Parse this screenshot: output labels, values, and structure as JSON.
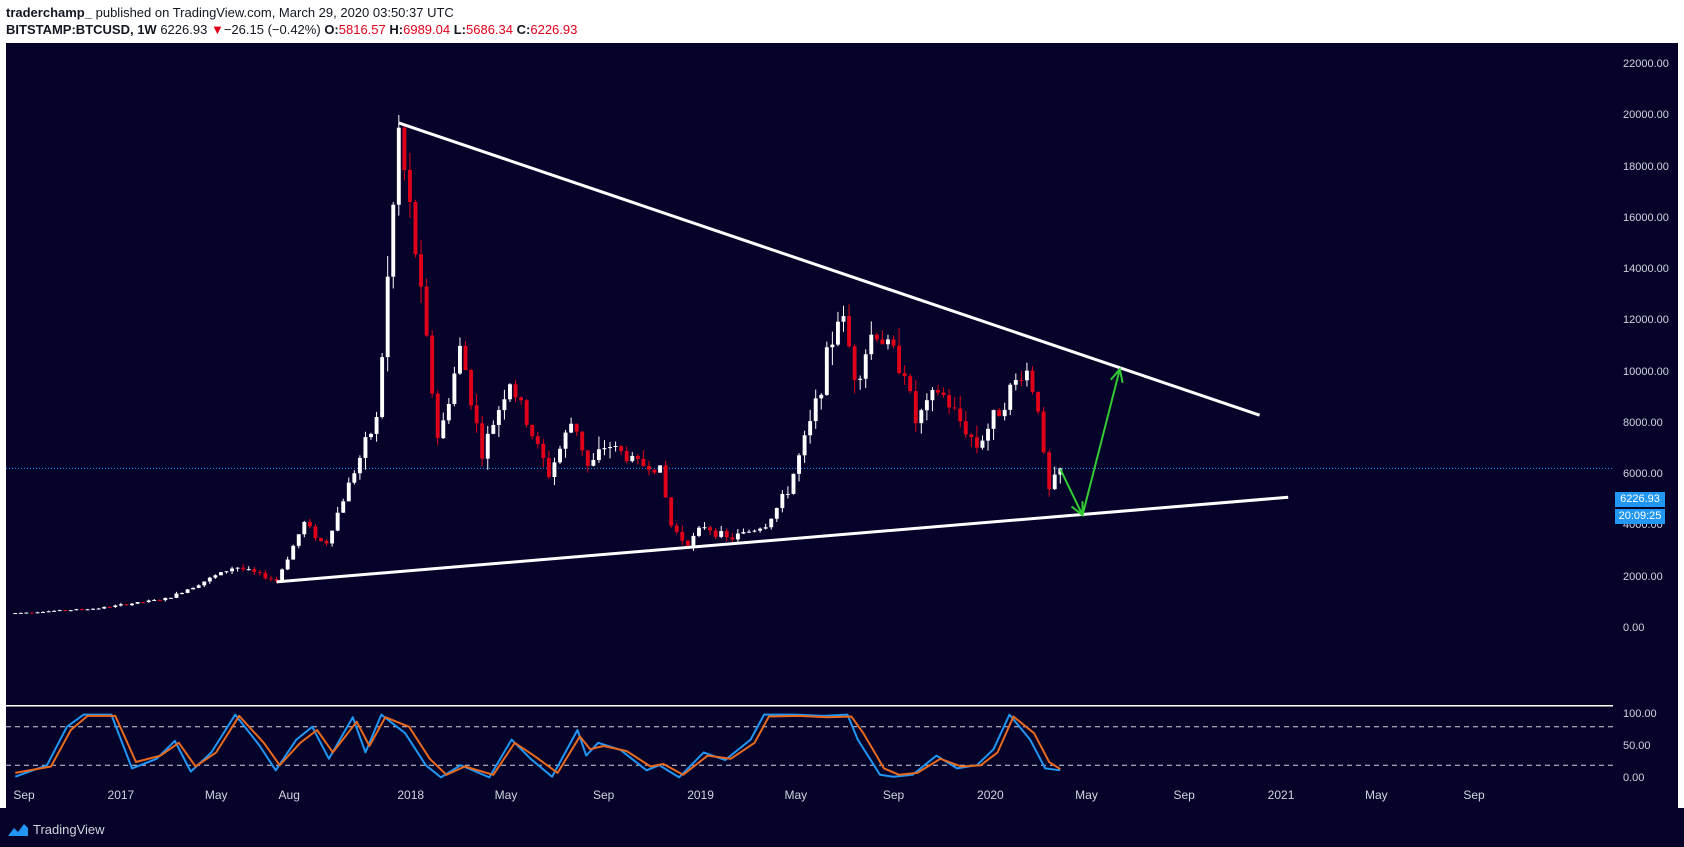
{
  "header": {
    "author": "traderchamp_",
    "published": "published on TradingView.com, March 29, 2020 03:50:37 UTC",
    "symbol": "BITSTAMP:BTCUSD, 1W",
    "last": "6226.93",
    "change_arrow": "▼",
    "change": "−26.15 (−0.42%)",
    "o_label": "O:",
    "o": "5816.57",
    "h_label": "H:",
    "h": "6989.04",
    "l_label": "L:",
    "l": "5686.34",
    "c_label": "C:",
    "c": "6226.93"
  },
  "price_tag": "6226.93",
  "countdown_tag": "20:09:25",
  "footer": {
    "brand": "TradingView"
  },
  "colors": {
    "background": "#05032a",
    "up": "#ffffff",
    "down": "#e0001a",
    "stoch_k": "#2196f3",
    "stoch_d": "#e86a1f",
    "arrow": "#33cc33",
    "price_line": "#2196f3"
  },
  "chart_data": [
    {
      "type": "candlestick",
      "title": "",
      "ylim": [
        0,
        22000
      ],
      "yticks": [
        "22000.00",
        "20000.00",
        "18000.00",
        "16000.00",
        "14000.00",
        "12000.00",
        "10000.00",
        "8000.00",
        "6000.00",
        "4000.00",
        "2000.00",
        "0.00"
      ],
      "xtick_labels": [
        "Sep",
        "2017",
        "May",
        "Aug",
        "2018",
        "May",
        "Sep",
        "2019",
        "May",
        "Sep",
        "2020",
        "May",
        "Sep",
        "2021",
        "May",
        "Sep"
      ],
      "xtick_dates": [
        "2016-09-01",
        "2017-01-01",
        "2017-05-01",
        "2017-08-01",
        "2018-01-01",
        "2018-05-01",
        "2018-09-01",
        "2019-01-01",
        "2019-05-01",
        "2019-09-01",
        "2020-01-01",
        "2020-05-01",
        "2020-09-01",
        "2021-01-01",
        "2021-05-01",
        "2021-09-01"
      ],
      "anchors": [
        [
          "2016-08-21",
          580
        ],
        [
          "2016-12-01",
          760
        ],
        [
          "2017-03-01",
          1150
        ],
        [
          "2017-05-25",
          2400
        ],
        [
          "2017-07-16",
          1850
        ],
        [
          "2017-08-20",
          4100
        ],
        [
          "2017-09-15",
          3200
        ],
        [
          "2017-10-20",
          6000
        ],
        [
          "2017-11-20",
          8200
        ],
        [
          "2017-12-17",
          19300
        ],
        [
          "2018-01-08",
          14500
        ],
        [
          "2018-02-05",
          7200
        ],
        [
          "2018-03-05",
          11000
        ],
        [
          "2018-04-01",
          6800
        ],
        [
          "2018-05-05",
          9700
        ],
        [
          "2018-06-24",
          6000
        ],
        [
          "2018-07-25",
          8200
        ],
        [
          "2018-08-13",
          6200
        ],
        [
          "2018-09-05",
          7200
        ],
        [
          "2018-10-15",
          6400
        ],
        [
          "2018-11-10",
          6300
        ],
        [
          "2018-11-25",
          4000
        ],
        [
          "2018-12-15",
          3250
        ],
        [
          "2019-01-06",
          4000
        ],
        [
          "2019-02-05",
          3450
        ],
        [
          "2019-03-25",
          4050
        ],
        [
          "2019-04-20",
          5300
        ],
        [
          "2019-05-20",
          8000
        ],
        [
          "2019-06-26",
          12500
        ],
        [
          "2019-07-16",
          9700
        ],
        [
          "2019-08-07",
          11700
        ],
        [
          "2019-09-15",
          10100
        ],
        [
          "2019-09-28",
          8000
        ],
        [
          "2019-10-28",
          9300
        ],
        [
          "2019-12-15",
          7100
        ],
        [
          "2020-01-15",
          8700
        ],
        [
          "2020-02-14",
          10200
        ],
        [
          "2020-03-01",
          8700
        ],
        [
          "2020-03-13",
          5200
        ],
        [
          "2020-03-29",
          6226.93
        ]
      ],
      "trendlines": [
        {
          "name": "resistance",
          "points": [
            [
              "2017-12-17",
              19700
            ],
            [
              "2020-12-05",
              8300
            ]
          ]
        },
        {
          "name": "support",
          "points": [
            [
              "2017-07-16",
              1800
            ],
            [
              "2021-01-10",
              5100
            ]
          ]
        }
      ],
      "projection": [
        [
          "2020-03-29",
          6200
        ],
        [
          "2020-04-26",
          4400
        ],
        [
          "2020-06-12",
          10100
        ]
      ],
      "last_price": 6226.93
    },
    {
      "type": "line",
      "name": "Stochastic RSI",
      "ylim": [
        0,
        100
      ],
      "yticks": [
        "100.00",
        "50.00",
        "0.00"
      ],
      "bands": [
        80,
        20
      ],
      "series": [
        {
          "name": "K",
          "points": [
            [
              "2016-08-21",
              2
            ],
            [
              "2016-09-30",
              20
            ],
            [
              "2016-10-25",
              80
            ],
            [
              "2016-11-15",
              99
            ],
            [
              "2016-12-20",
              99
            ],
            [
              "2017-01-15",
              15
            ],
            [
              "2017-02-15",
              30
            ],
            [
              "2017-03-10",
              58
            ],
            [
              "2017-03-30",
              10
            ],
            [
              "2017-04-25",
              40
            ],
            [
              "2017-05-25",
              99
            ],
            [
              "2017-06-25",
              50
            ],
            [
              "2017-07-15",
              12
            ],
            [
              "2017-08-10",
              60
            ],
            [
              "2017-08-30",
              80
            ],
            [
              "2017-09-20",
              30
            ],
            [
              "2017-10-20",
              95
            ],
            [
              "2017-11-05",
              40
            ],
            [
              "2017-11-25",
              99
            ],
            [
              "2017-12-25",
              70
            ],
            [
              "2018-01-20",
              20
            ],
            [
              "2018-02-08",
              1
            ],
            [
              "2018-03-05",
              20
            ],
            [
              "2018-04-10",
              1
            ],
            [
              "2018-05-08",
              60
            ],
            [
              "2018-06-01",
              30
            ],
            [
              "2018-06-28",
              2
            ],
            [
              "2018-07-30",
              75
            ],
            [
              "2018-08-10",
              35
            ],
            [
              "2018-08-25",
              55
            ],
            [
              "2018-09-22",
              44
            ],
            [
              "2018-10-25",
              12
            ],
            [
              "2018-11-10",
              20
            ],
            [
              "2018-12-05",
              1
            ],
            [
              "2019-01-05",
              40
            ],
            [
              "2019-02-01",
              28
            ],
            [
              "2019-03-05",
              60
            ],
            [
              "2019-03-22",
              99
            ],
            [
              "2019-05-01",
              99
            ],
            [
              "2019-06-05",
              97
            ],
            [
              "2019-07-05",
              99
            ],
            [
              "2019-07-18",
              60
            ],
            [
              "2019-08-15",
              5
            ],
            [
              "2019-09-01",
              2
            ],
            [
              "2019-09-25",
              5
            ],
            [
              "2019-10-25",
              35
            ],
            [
              "2019-11-20",
              15
            ],
            [
              "2019-12-15",
              20
            ],
            [
              "2020-01-05",
              45
            ],
            [
              "2020-01-25",
              99
            ],
            [
              "2020-02-20",
              60
            ],
            [
              "2020-03-10",
              15
            ],
            [
              "2020-03-29",
              12
            ]
          ]
        },
        {
          "name": "D",
          "points": [
            [
              "2016-08-21",
              8
            ],
            [
              "2016-10-05",
              18
            ],
            [
              "2016-10-30",
              75
            ],
            [
              "2016-11-20",
              97
            ],
            [
              "2016-12-25",
              97
            ],
            [
              "2017-01-20",
              25
            ],
            [
              "2017-02-20",
              35
            ],
            [
              "2017-03-15",
              55
            ],
            [
              "2017-04-05",
              18
            ],
            [
              "2017-05-01",
              40
            ],
            [
              "2017-05-30",
              97
            ],
            [
              "2017-06-30",
              55
            ],
            [
              "2017-07-20",
              20
            ],
            [
              "2017-08-15",
              55
            ],
            [
              "2017-09-05",
              75
            ],
            [
              "2017-09-25",
              40
            ],
            [
              "2017-10-25",
              88
            ],
            [
              "2017-11-10",
              50
            ],
            [
              "2017-11-30",
              95
            ],
            [
              "2017-12-30",
              80
            ],
            [
              "2018-01-25",
              30
            ],
            [
              "2018-02-15",
              5
            ],
            [
              "2018-03-10",
              18
            ],
            [
              "2018-04-15",
              5
            ],
            [
              "2018-05-12",
              55
            ],
            [
              "2018-06-05",
              35
            ],
            [
              "2018-07-05",
              8
            ],
            [
              "2018-08-02",
              65
            ],
            [
              "2018-08-15",
              45
            ],
            [
              "2018-09-01",
              50
            ],
            [
              "2018-09-30",
              42
            ],
            [
              "2018-10-30",
              18
            ],
            [
              "2018-11-15",
              22
            ],
            [
              "2018-12-10",
              5
            ],
            [
              "2019-01-10",
              35
            ],
            [
              "2019-02-08",
              30
            ],
            [
              "2019-03-10",
              55
            ],
            [
              "2019-03-28",
              96
            ],
            [
              "2019-05-05",
              97
            ],
            [
              "2019-06-10",
              95
            ],
            [
              "2019-07-10",
              96
            ],
            [
              "2019-07-25",
              70
            ],
            [
              "2019-08-20",
              15
            ],
            [
              "2019-09-08",
              5
            ],
            [
              "2019-10-01",
              8
            ],
            [
              "2019-10-30",
              30
            ],
            [
              "2019-11-25",
              18
            ],
            [
              "2019-12-20",
              20
            ],
            [
              "2020-01-10",
              40
            ],
            [
              "2020-01-30",
              96
            ],
            [
              "2020-02-25",
              70
            ],
            [
              "2020-03-15",
              25
            ],
            [
              "2020-03-29",
              14
            ]
          ]
        }
      ]
    }
  ]
}
